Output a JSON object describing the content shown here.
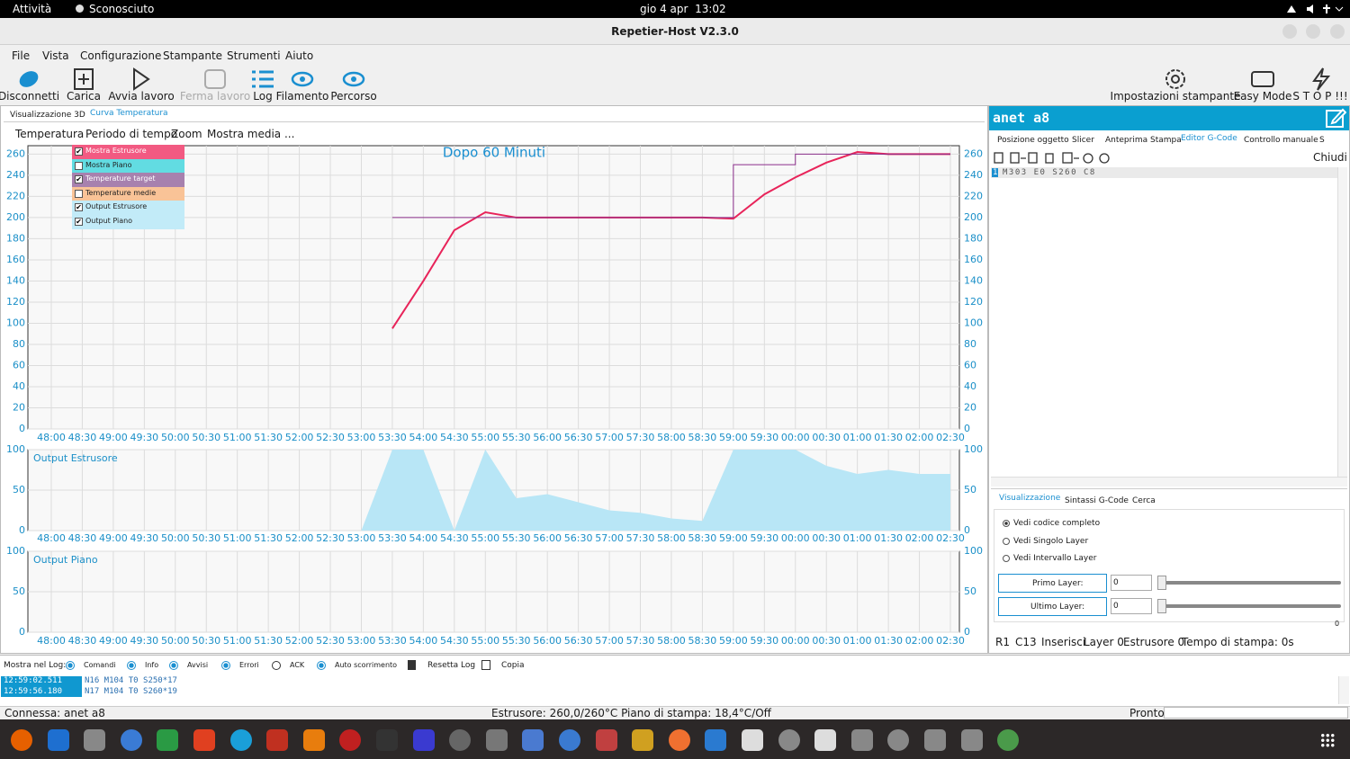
{
  "topbar": {
    "activities": "Attività",
    "app": "Sconosciuto",
    "clock": "gio 4 apr  13:02"
  },
  "window": {
    "title": "Repetier-Host V2.3.0"
  },
  "menu": [
    "File",
    "Vista",
    "Configurazione",
    "Stampante",
    "Strumenti",
    "Aiuto"
  ],
  "toolbar": {
    "left": [
      "Disconnetti",
      "Carica",
      "Avvia lavoro",
      "Ferma lavoro",
      "Log",
      "Filamento",
      "Percorso"
    ],
    "right": [
      "Impostazioni stampante",
      "Easy Mode",
      "S T O P !!!"
    ]
  },
  "view_tabs": [
    "Visualizzazione 3D",
    "Curva Temperatura"
  ],
  "chart_menu": [
    "Temperatura",
    "Periodo di tempo",
    "Zoom",
    "Mostra media ..."
  ],
  "legend": [
    {
      "label": "Mostra Estrusore",
      "checked": true,
      "color": "#f25a82"
    },
    {
      "label": "Mostra Piano",
      "checked": false,
      "color": "#62dce2"
    },
    {
      "label": "Temperature target",
      "checked": true,
      "color": "#a781ae"
    },
    {
      "label": "Temperature medie",
      "checked": false,
      "color": "#f9c397"
    },
    {
      "label": "Output Estrusore",
      "checked": true,
      "color": "#c2ebf8"
    },
    {
      "label": "Output Piano",
      "checked": true,
      "color": "#c2ebf8"
    }
  ],
  "chart_data": [
    {
      "type": "line",
      "title": "Dopo 60 Minuti",
      "categories": [
        "48:00",
        "48:30",
        "49:00",
        "49:30",
        "50:00",
        "50:30",
        "51:00",
        "51:30",
        "52:00",
        "52:30",
        "53:00",
        "53:30",
        "54:00",
        "54:30",
        "55:00",
        "55:30",
        "56:00",
        "56:30",
        "57:00",
        "57:30",
        "58:00",
        "58:30",
        "59:00",
        "59:30",
        "00:00",
        "00:30",
        "01:00",
        "01:30",
        "02:00",
        "02:30"
      ],
      "series": [
        {
          "color": "#e8245a",
          "values": [
            null,
            null,
            null,
            null,
            null,
            null,
            null,
            null,
            null,
            null,
            null,
            95,
            140,
            188,
            205,
            200,
            200,
            200,
            200,
            200,
            200,
            200,
            199,
            222,
            238,
            252,
            262,
            260,
            260,
            260
          ]
        },
        {
          "color": "#8b2f8b",
          "step": true,
          "values": [
            null,
            null,
            null,
            null,
            null,
            null,
            null,
            null,
            null,
            null,
            null,
            200,
            200,
            200,
            200,
            200,
            200,
            200,
            200,
            200,
            200,
            200,
            250,
            250,
            260,
            260,
            260,
            260,
            260,
            260
          ]
        }
      ],
      "ylim": [
        0,
        268
      ],
      "yticks": [
        0,
        20,
        40,
        60,
        80,
        100,
        120,
        140,
        160,
        180,
        200,
        220,
        240,
        260
      ],
      "grid": true
    },
    {
      "type": "area",
      "title": "Output Estrusore",
      "categories": [
        "48:00",
        "48:30",
        "49:00",
        "49:30",
        "50:00",
        "50:30",
        "51:00",
        "51:30",
        "52:00",
        "52:30",
        "53:00",
        "53:30",
        "54:00",
        "54:30",
        "55:00",
        "55:30",
        "56:00",
        "56:30",
        "57:00",
        "57:30",
        "58:00",
        "58:30",
        "59:00",
        "59:30",
        "00:00",
        "00:30",
        "01:00",
        "01:30",
        "02:00",
        "02:30"
      ],
      "series": [
        {
          "color": "#b8e6f6",
          "values": [
            0,
            0,
            0,
            0,
            0,
            0,
            0,
            0,
            0,
            0,
            0,
            100,
            100,
            0,
            100,
            40,
            45,
            35,
            25,
            22,
            15,
            12,
            100,
            100,
            100,
            80,
            70,
            75,
            70,
            70
          ]
        }
      ],
      "ylim": [
        0,
        100
      ],
      "yticks": [
        0,
        50,
        100
      ],
      "grid": true
    },
    {
      "type": "area",
      "title": "Output Piano",
      "categories": [
        "48:00",
        "48:30",
        "49:00",
        "49:30",
        "50:00",
        "50:30",
        "51:00",
        "51:30",
        "52:00",
        "52:30",
        "53:00",
        "53:30",
        "54:00",
        "54:30",
        "55:00",
        "55:30",
        "56:00",
        "56:30",
        "57:00",
        "57:30",
        "58:00",
        "58:30",
        "59:00",
        "59:30",
        "00:00",
        "00:30",
        "01:00",
        "01:30",
        "02:00",
        "02:30"
      ],
      "series": [],
      "ylim": [
        0,
        100
      ],
      "yticks": [
        0,
        50,
        100
      ],
      "grid": true
    }
  ],
  "printer": {
    "name": "anet a8",
    "tabs": [
      "Posizione oggetto",
      "Slicer",
      "Anteprima Stampa",
      "Editor G-Code",
      "Controllo manuale",
      "S"
    ],
    "close": "Chiudi",
    "line_number": "1",
    "gcode": "M303 E0 S260 C8"
  },
  "bottom_tabs": [
    "Visualizzazione",
    "Sintassi G-Code",
    "Cerca"
  ],
  "view_options": [
    "Vedi codice completo",
    "Vedi Singolo Layer",
    "Vedi Intervallo Layer"
  ],
  "layers": {
    "first": "Primo Layer:",
    "first_value": "0",
    "last": "Ultimo Layer:",
    "last_value": "0",
    "slider_max": "0"
  },
  "editor_status": [
    "R1",
    "C13",
    "Inserisci",
    "Layer 0",
    "Estrusore 0",
    "Tempo di stampa: 0s"
  ],
  "log": {
    "label": "Mostra nel Log:",
    "filters": [
      "Comandi",
      "Info",
      "Avvisi",
      "Errori",
      "ACK",
      "Auto scorrimento"
    ],
    "reset": "Resetta Log",
    "copy": "Copia",
    "lines": [
      {
        "time": "12:59:02.511",
        "text": "N16 M104 T0 S250*17"
      },
      {
        "time": "12:59:56.180",
        "text": "N17 M104 T0 S260*19"
      }
    ]
  },
  "status": {
    "connection": "Connessa: anet a8",
    "temps": "Estrusore: 260,0/260°C Piano di stampa: 18,4°C/Off",
    "state": "Pronto"
  }
}
